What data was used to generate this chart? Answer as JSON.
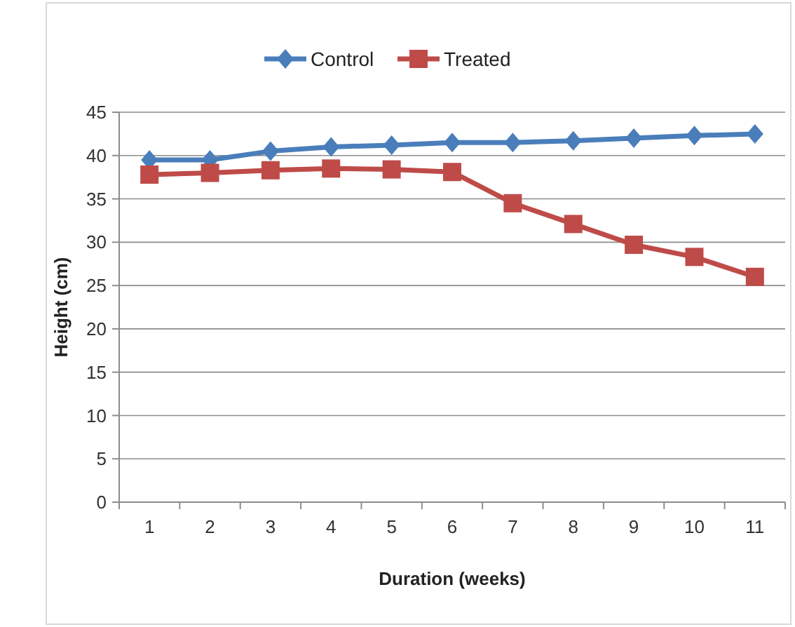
{
  "chart_data": {
    "type": "line",
    "xlabel": "Duration (weeks)",
    "ylabel": "Height (cm)",
    "categories": [
      "1",
      "2",
      "3",
      "4",
      "5",
      "6",
      "7",
      "8",
      "9",
      "10",
      "11"
    ],
    "series": [
      {
        "name": "Control",
        "color": "#4a7ebb",
        "marker": "diamond",
        "values": [
          39.5,
          39.5,
          40.5,
          41,
          41.2,
          41.5,
          41.5,
          41.7,
          42,
          42.3,
          42.5
        ]
      },
      {
        "name": "Treated",
        "color": "#be4b48",
        "marker": "square",
        "values": [
          37.8,
          38,
          38.3,
          38.5,
          38.4,
          38.1,
          34.5,
          32.1,
          29.7,
          28.3,
          26
        ]
      }
    ],
    "ylim": [
      0,
      45
    ],
    "yticks": [
      0,
      5,
      10,
      15,
      20,
      25,
      30,
      35,
      40,
      45
    ],
    "grid": "y",
    "legend": "top"
  }
}
